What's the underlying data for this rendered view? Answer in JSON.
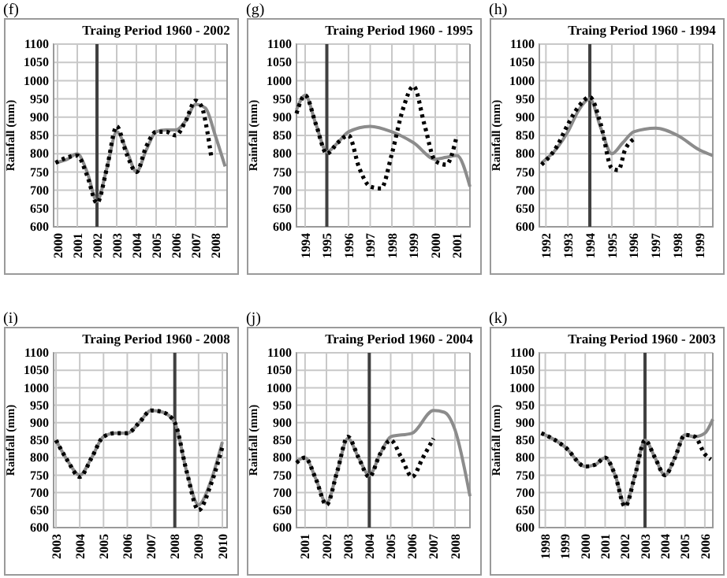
{
  "chart_data": [
    {
      "type": "line",
      "title": "Traing Period 1960 - 2002",
      "ylabel": "Rainfall (mm)",
      "annotations": [
        "(f)"
      ],
      "xlim": [
        1999.8,
        2008.6
      ],
      "xticks": [
        2000,
        2001,
        2002,
        2003,
        2004,
        2005,
        2006,
        2007,
        2008
      ],
      "ylim": [
        600,
        1100
      ],
      "yticks": [
        600,
        650,
        700,
        750,
        800,
        850,
        900,
        950,
        1000,
        1050,
        1100
      ],
      "grid": true,
      "marker": "none",
      "ref_lines": [
        {
          "axis": "x",
          "value": 2002,
          "color": "#404040"
        }
      ],
      "series": [
        {
          "color": "#8c8c8c",
          "line_style": "solid",
          "x": [
            1999.9,
            2000.5,
            2001,
            2001.5,
            2002,
            2002.5,
            2003,
            2003.5,
            2004,
            2004.5,
            2005,
            2005.5,
            2006,
            2006.5,
            2007,
            2007.5,
            2008,
            2008.5
          ],
          "values": [
            775,
            785,
            800,
            750,
            670,
            760,
            860,
            810,
            750,
            810,
            860,
            865,
            865,
            890,
            935,
            925,
            850,
            765
          ]
        },
        {
          "color": "#000000",
          "line_style": "dotted",
          "x": [
            1999.9,
            2000.5,
            2001,
            2001.5,
            2002,
            2002.5,
            2003,
            2003.5,
            2004,
            2004.5,
            2005,
            2005.5,
            2006,
            2006.5,
            2007,
            2007.3,
            2007.6,
            2007.8
          ],
          "values": [
            775,
            790,
            795,
            740,
            665,
            760,
            875,
            800,
            750,
            820,
            860,
            860,
            850,
            890,
            945,
            930,
            860,
            790
          ]
        }
      ]
    },
    {
      "type": "line",
      "title": "Traing Period 1960 - 1995",
      "ylabel": "Rainfall (mm)",
      "annotations": [
        "(g)"
      ],
      "xlim": [
        1993.6,
        2001.6
      ],
      "xticks": [
        1994,
        1995,
        1996,
        1997,
        1998,
        1999,
        2000,
        2001
      ],
      "ylim": [
        600,
        1100
      ],
      "yticks": [
        600,
        650,
        700,
        750,
        800,
        850,
        900,
        950,
        1000,
        1050,
        1100
      ],
      "grid": true,
      "marker": "none",
      "ref_lines": [
        {
          "axis": "x",
          "value": 1995,
          "color": "#404040"
        }
      ],
      "series": [
        {
          "color": "#8c8c8c",
          "line_style": "solid",
          "x": [
            1993.6,
            1994,
            1994.5,
            1995,
            1995.5,
            1996,
            1997,
            1998,
            1999,
            2000,
            2000.5,
            2001,
            2001.6
          ],
          "values": [
            920,
            960,
            880,
            805,
            830,
            860,
            875,
            860,
            830,
            785,
            790,
            795,
            710
          ]
        },
        {
          "color": "#000000",
          "line_style": "dotted",
          "x": [
            1993.6,
            1994,
            1994.5,
            1995,
            1995.5,
            1996,
            1996.5,
            1997,
            1997.5,
            1998,
            1998.5,
            1999,
            1999.5,
            2000,
            2000.5,
            2001
          ],
          "values": [
            910,
            960,
            880,
            800,
            830,
            850,
            760,
            710,
            705,
            800,
            920,
            985,
            880,
            780,
            770,
            850
          ]
        }
      ]
    },
    {
      "type": "line",
      "title": "Traing Period 1960 - 1994",
      "ylabel": "Rainfall (mm)",
      "annotations": [
        "(h)"
      ],
      "xlim": [
        1991.7,
        1999.6
      ],
      "xticks": [
        1992,
        1993,
        1994,
        1995,
        1996,
        1997,
        1998,
        1999
      ],
      "ylim": [
        600,
        1100
      ],
      "yticks": [
        600,
        650,
        700,
        750,
        800,
        850,
        900,
        950,
        1000,
        1050,
        1100
      ],
      "grid": true,
      "marker": "none",
      "ref_lines": [
        {
          "axis": "x",
          "value": 1994,
          "color": "#404040"
        }
      ],
      "series": [
        {
          "color": "#8c8c8c",
          "line_style": "solid",
          "x": [
            1991.8,
            1992.5,
            1993,
            1993.5,
            1994,
            1994.5,
            1995,
            1995.5,
            1996,
            1997,
            1998,
            1999,
            1999.6
          ],
          "values": [
            775,
            815,
            860,
            920,
            950,
            870,
            800,
            830,
            860,
            870,
            850,
            810,
            795
          ]
        },
        {
          "color": "#000000",
          "line_style": "dotted",
          "x": [
            1991.8,
            1992.5,
            1993,
            1993.5,
            1994,
            1994.5,
            1995,
            1995.3,
            1995.6,
            1996
          ],
          "values": [
            770,
            820,
            880,
            930,
            955,
            880,
            760,
            755,
            810,
            840
          ]
        }
      ]
    },
    {
      "type": "line",
      "title": "Traing Period 1960 - 2008",
      "ylabel": "Rainfall (mm)",
      "annotations": [
        "(i)"
      ],
      "xlim": [
        2002.9,
        2010.2
      ],
      "xticks": [
        2003,
        2004,
        2005,
        2006,
        2007,
        2008,
        2009,
        2010
      ],
      "ylim": [
        600,
        1100
      ],
      "yticks": [
        600,
        650,
        700,
        750,
        800,
        850,
        900,
        950,
        1000,
        1050,
        1100
      ],
      "grid": true,
      "marker": "none",
      "ref_lines": [
        {
          "axis": "x",
          "value": 2008,
          "color": "#404040"
        }
      ],
      "series": [
        {
          "color": "#8c8c8c",
          "line_style": "solid",
          "x": [
            2003,
            2003.5,
            2004,
            2004.5,
            2005,
            2005.5,
            2006,
            2006.5,
            2007,
            2007.5,
            2008,
            2008.5,
            2009,
            2009.5,
            2010
          ],
          "values": [
            850,
            790,
            750,
            800,
            860,
            870,
            870,
            900,
            935,
            930,
            900,
            760,
            665,
            730,
            845
          ]
        },
        {
          "color": "#000000",
          "line_style": "dotted",
          "x": [
            2003,
            2003.5,
            2004,
            2004.5,
            2005,
            2005.5,
            2006,
            2006.5,
            2007,
            2007.5,
            2008,
            2008.5,
            2009,
            2009.5,
            2010
          ],
          "values": [
            850,
            790,
            745,
            800,
            860,
            870,
            870,
            900,
            935,
            930,
            900,
            760,
            650,
            720,
            830
          ]
        }
      ]
    },
    {
      "type": "line",
      "title": "Traing Period 1960 - 2004",
      "ylabel": "Rainfall (mm)",
      "annotations": [
        "(j)"
      ],
      "xlim": [
        2000.6,
        2008.7
      ],
      "xticks": [
        2001,
        2002,
        2003,
        2004,
        2005,
        2006,
        2007,
        2008
      ],
      "ylim": [
        600,
        1100
      ],
      "yticks": [
        600,
        650,
        700,
        750,
        800,
        850,
        900,
        950,
        1000,
        1050,
        1100
      ],
      "grid": true,
      "marker": "none",
      "ref_lines": [
        {
          "axis": "x",
          "value": 2004,
          "color": "#404040"
        }
      ],
      "series": [
        {
          "color": "#8c8c8c",
          "line_style": "solid",
          "x": [
            2000.6,
            2001,
            2001.5,
            2002,
            2002.5,
            2003,
            2003.5,
            2004,
            2004.5,
            2005,
            2006,
            2007,
            2007.5,
            2008,
            2008.7
          ],
          "values": [
            790,
            800,
            740,
            670,
            760,
            855,
            800,
            750,
            810,
            860,
            870,
            935,
            930,
            880,
            690
          ]
        },
        {
          "color": "#000000",
          "line_style": "dotted",
          "x": [
            2000.6,
            2001,
            2001.5,
            2002,
            2002.5,
            2003,
            2003.5,
            2004,
            2004.5,
            2005,
            2005.5,
            2006,
            2006.5,
            2007
          ],
          "values": [
            785,
            800,
            740,
            665,
            760,
            860,
            800,
            745,
            810,
            850,
            800,
            745,
            800,
            855
          ]
        }
      ]
    },
    {
      "type": "line",
      "title": "Traing Period 1960 - 2003",
      "ylabel": "Rainfall (mm)",
      "annotations": [
        "(k)"
      ],
      "xlim": [
        1997.7,
        2006.4
      ],
      "xticks": [
        1998,
        1999,
        2000,
        2001,
        2002,
        2003,
        2004,
        2005,
        2006
      ],
      "ylim": [
        600,
        1100
      ],
      "yticks": [
        600,
        650,
        700,
        750,
        800,
        850,
        900,
        950,
        1000,
        1050,
        1100
      ],
      "grid": true,
      "marker": "none",
      "ref_lines": [
        {
          "axis": "x",
          "value": 2003,
          "color": "#404040"
        }
      ],
      "series": [
        {
          "color": "#8c8c8c",
          "line_style": "solid",
          "x": [
            1997.8,
            1998.5,
            1999,
            2000,
            2000.5,
            2001,
            2001.5,
            2002,
            2002.5,
            2003,
            2003.5,
            2004,
            2004.5,
            2005,
            2005.5,
            2006,
            2006.4
          ],
          "values": [
            870,
            850,
            830,
            775,
            780,
            800,
            750,
            665,
            750,
            850,
            800,
            750,
            800,
            865,
            860,
            870,
            910
          ]
        },
        {
          "color": "#000000",
          "line_style": "dotted",
          "x": [
            1997.8,
            1998.5,
            1999,
            2000,
            2000.5,
            2001,
            2001.5,
            2002,
            2002.5,
            2003,
            2003.5,
            2004,
            2004.5,
            2005,
            2005.5,
            2006,
            2006.3
          ],
          "values": [
            870,
            850,
            830,
            775,
            780,
            800,
            750,
            660,
            750,
            850,
            800,
            750,
            800,
            865,
            860,
            810,
            795
          ]
        }
      ]
    }
  ]
}
